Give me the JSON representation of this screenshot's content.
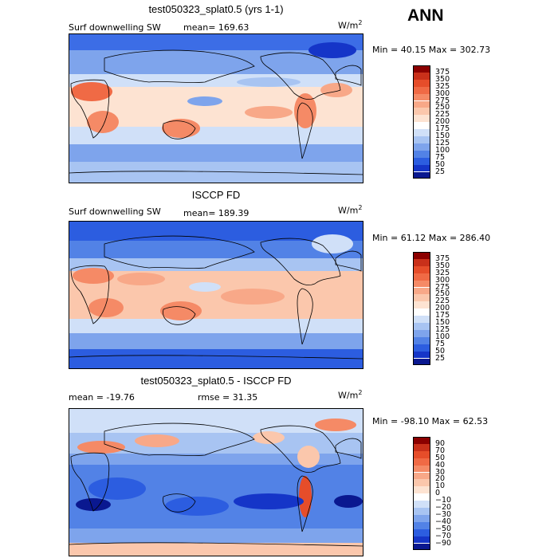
{
  "season": "ANN",
  "panels": [
    {
      "title": "test050323_splat0.5 (yrs 1-1)",
      "variable": "Surf downwelling SW",
      "stat_text": "mean= 169.63",
      "units": "W/m",
      "units_exp": "2",
      "minmax": "Min =  40.15 Max = 302.73",
      "levels": [
        "375",
        "350",
        "325",
        "300",
        "275",
        "250",
        "225",
        "200",
        "175",
        "150",
        "125",
        "100",
        "75",
        "50",
        "25"
      ],
      "colors": [
        "#8b0000",
        "#c9301a",
        "#e64d2a",
        "#f06a45",
        "#f58a66",
        "#f8a888",
        "#fbc7ac",
        "#fde3d2",
        "#ffffff",
        "#d0e0f8",
        "#a8c4f2",
        "#7ea4ec",
        "#5282e6",
        "#2c5de0",
        "#1535c8",
        "#0a1890"
      ]
    },
    {
      "title": "ISCCP FD",
      "variable": "Surf downwelling SW",
      "stat_text": "mean= 189.39",
      "units": "W/m",
      "units_exp": "2",
      "minmax": "Min =  61.12 Max = 286.40",
      "levels": [
        "375",
        "350",
        "325",
        "300",
        "275",
        "250",
        "225",
        "200",
        "175",
        "150",
        "125",
        "100",
        "75",
        "50",
        "25"
      ],
      "colors": [
        "#8b0000",
        "#c9301a",
        "#e64d2a",
        "#f06a45",
        "#f58a66",
        "#f8a888",
        "#fbc7ac",
        "#fde3d2",
        "#ffffff",
        "#d0e0f8",
        "#a8c4f2",
        "#7ea4ec",
        "#5282e6",
        "#2c5de0",
        "#1535c8",
        "#0a1890"
      ]
    },
    {
      "title": "test050323_splat0.5 - ISCCP FD",
      "variable": "",
      "stat_text": "mean = -19.76",
      "stat2_text": "rmse =  31.35",
      "units": "W/m",
      "units_exp": "2",
      "minmax": "Min = -98.10 Max =  62.53",
      "levels": [
        "90",
        "70",
        "50",
        "40",
        "30",
        "20",
        "10",
        "0",
        "−10",
        "−20",
        "−30",
        "−40",
        "−50",
        "−70",
        "−90"
      ],
      "colors": [
        "#8b0000",
        "#c9301a",
        "#e64d2a",
        "#f06a45",
        "#f58a66",
        "#f8a888",
        "#fbc7ac",
        "#fde3d2",
        "#ffffff",
        "#d0e0f8",
        "#a8c4f2",
        "#7ea4ec",
        "#5282e6",
        "#2c5de0",
        "#1535c8",
        "#0a1890"
      ]
    }
  ]
}
